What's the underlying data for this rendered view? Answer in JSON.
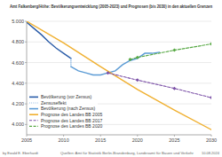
{
  "chart_data": {
    "type": "line",
    "title": "Amt Falkenberg/Höhe: Bevölkerungsentwicklung (2005-2023) und Prognosen (bis 2030) in den aktuellen Grenzen",
    "xlim": [
      2005,
      2030
    ],
    "xticks": [
      2005,
      2010,
      2015,
      2020,
      2025,
      2030
    ],
    "ylim": [
      3900,
      5000
    ],
    "yticks": [
      {
        "value": 4000,
        "label": "4.000"
      },
      {
        "value": 4200,
        "label": "4.200"
      },
      {
        "value": 4400,
        "label": "4.400"
      },
      {
        "value": 4600,
        "label": "4.600"
      },
      {
        "value": 4800,
        "label": "4.800"
      },
      {
        "value": 5000,
        "label": "5.000"
      }
    ],
    "grid": true,
    "legend": "lower left",
    "series": [
      {
        "name": "Bevölkerung (vor Zensus)",
        "color": "#2a5ca8",
        "line_style": "solid",
        "x": [
          2005,
          2006,
          2007,
          2008,
          2009,
          2010,
          2011
        ],
        "values": [
          4990,
          4930,
          4870,
          4800,
          4740,
          4690,
          4640
        ]
      },
      {
        "name": "Zensuseffekt",
        "color": "#7fb0e0",
        "line_style": "dotted",
        "x": [
          2011,
          2011
        ],
        "values": [
          4640,
          4560
        ]
      },
      {
        "name": "Bevölkerung (nach Zensus)",
        "color": "#5b9bd5",
        "line_style": "solid",
        "x": [
          2011,
          2012,
          2013,
          2014,
          2015,
          2016,
          2017,
          2018,
          2019,
          2020,
          2021,
          2022,
          2023
        ],
        "values": [
          4560,
          4520,
          4500,
          4480,
          4480,
          4500,
          4520,
          4580,
          4620,
          4640,
          4690,
          4690,
          4700
        ]
      },
      {
        "name": "Prognose des Landes BB 2005",
        "color": "#f0b030",
        "line_style": "solid",
        "x": [
          2005,
          2010,
          2015,
          2020,
          2025,
          2030
        ],
        "values": [
          5000,
          4790,
          4560,
          4340,
          4140,
          3950
        ]
      },
      {
        "name": "Prognose des Landes BB 2017",
        "color": "#7a4fa6",
        "line_style": "dashed",
        "marker": "diamond",
        "x": [
          2016,
          2020,
          2025,
          2030
        ],
        "values": [
          4500,
          4430,
          4350,
          4260
        ]
      },
      {
        "name": "Prognose des Landes BB 2020",
        "color": "#56a843",
        "line_style": "dashed",
        "marker": "diamond",
        "x": [
          2019,
          2020,
          2025,
          2030
        ],
        "values": [
          4630,
          4650,
          4720,
          4780
        ]
      }
    ],
    "footer": {
      "author": "by Ewald E. Eberhardt",
      "source": "Quellen: Amt für Statistik Berlin-Brandenburg, Landesamt für Bauen und Verkehr",
      "date": "10.08.2024"
    }
  }
}
